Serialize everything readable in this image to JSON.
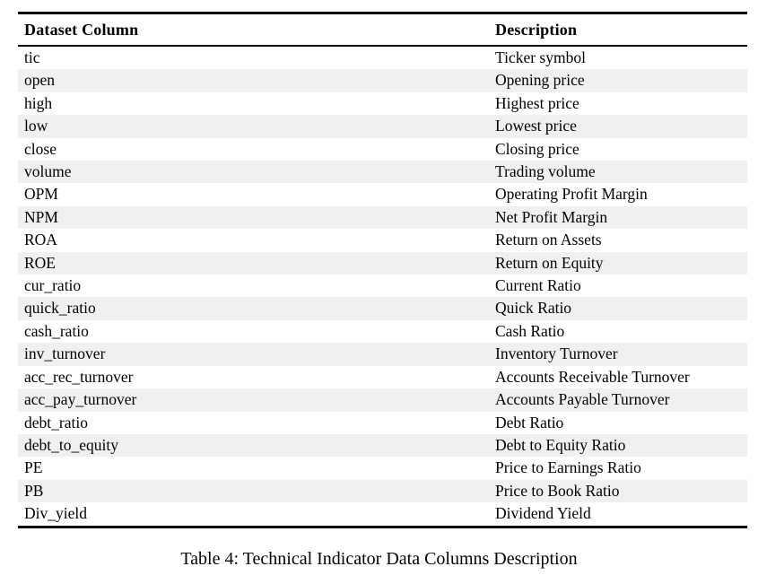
{
  "caption": "Table 4: Technical Indicator Data Columns Description",
  "table": {
    "columns": [
      "Dataset Column",
      "Description"
    ],
    "rows": [
      {
        "column": "tic",
        "description": "Ticker symbol"
      },
      {
        "column": "open",
        "description": "Opening price"
      },
      {
        "column": "high",
        "description": "Highest price"
      },
      {
        "column": "low",
        "description": "Lowest price"
      },
      {
        "column": "close",
        "description": "Closing price"
      },
      {
        "column": "volume",
        "description": "Trading volume"
      },
      {
        "column": "OPM",
        "description": "Operating Profit Margin"
      },
      {
        "column": "NPM",
        "description": "Net Profit Margin"
      },
      {
        "column": "ROA",
        "description": "Return on Assets"
      },
      {
        "column": "ROE",
        "description": "Return on Equity"
      },
      {
        "column": "cur_ratio",
        "description": "Current Ratio"
      },
      {
        "column": "quick_ratio",
        "description": "Quick Ratio"
      },
      {
        "column": "cash_ratio",
        "description": "Cash Ratio"
      },
      {
        "column": "inv_turnover",
        "description": "Inventory Turnover"
      },
      {
        "column": "acc_rec_turnover",
        "description": "Accounts Receivable Turnover"
      },
      {
        "column": "acc_pay_turnover",
        "description": "Accounts Payable Turnover"
      },
      {
        "column": "debt_ratio",
        "description": "Debt Ratio"
      },
      {
        "column": "debt_to_equity",
        "description": "Debt to Equity Ratio"
      },
      {
        "column": "PE",
        "description": "Price to Earnings Ratio"
      },
      {
        "column": "PB",
        "description": "Price to Book Ratio"
      },
      {
        "column": "Div_yield",
        "description": "Dividend Yield"
      }
    ],
    "colors": {
      "stripe": "#f0f0f0",
      "rule": "#000000",
      "text": "#000000"
    }
  }
}
